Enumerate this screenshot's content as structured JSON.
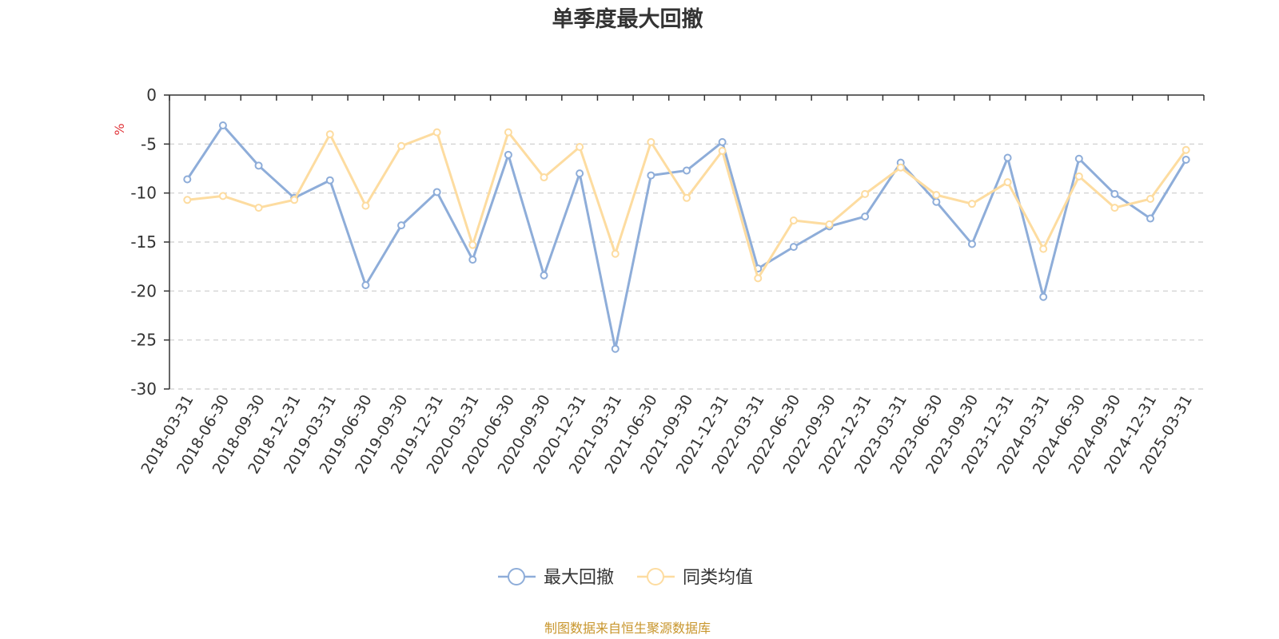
{
  "chart_data": {
    "type": "line",
    "title": "单季度最大回撤",
    "ylabel": "%",
    "xlabel": "",
    "ylim": [
      -30,
      0
    ],
    "yticks": [
      0,
      -5,
      -10,
      -15,
      -20,
      -25,
      -30
    ],
    "grid": true,
    "legend_position": "bottom",
    "categories": [
      "2018-03-31",
      "2018-06-30",
      "2018-09-30",
      "2018-12-31",
      "2019-03-31",
      "2019-06-30",
      "2019-09-30",
      "2019-12-31",
      "2020-03-31",
      "2020-06-30",
      "2020-09-30",
      "2020-12-31",
      "2021-03-31",
      "2021-06-30",
      "2021-09-30",
      "2021-12-31",
      "2022-03-31",
      "2022-06-30",
      "2022-09-30",
      "2022-12-31",
      "2023-03-31",
      "2023-06-30",
      "2023-09-30",
      "2023-12-31",
      "2024-03-31",
      "2024-06-30",
      "2024-09-30",
      "2024-12-31",
      "2025-03-31"
    ],
    "series": [
      {
        "name": "最大回撤",
        "color": "#8eadd9",
        "values": [
          -8.6,
          -3.1,
          -7.2,
          -10.5,
          -8.7,
          -19.4,
          -13.3,
          -9.9,
          -16.8,
          -6.1,
          -18.4,
          -8.0,
          -25.9,
          -8.2,
          -7.7,
          -4.8,
          -17.7,
          -15.5,
          -13.4,
          -12.4,
          -6.9,
          -10.9,
          -15.2,
          -6.4,
          -20.6,
          -6.5,
          -10.1,
          -12.6,
          -6.6
        ]
      },
      {
        "name": "同类均值",
        "color": "#fddca0",
        "values": [
          -10.7,
          -10.3,
          -11.5,
          -10.7,
          -4.0,
          -11.3,
          -5.2,
          -3.8,
          -15.3,
          -3.8,
          -8.4,
          -5.3,
          -16.2,
          -4.8,
          -10.5,
          -5.7,
          -18.7,
          -12.8,
          -13.2,
          -10.1,
          -7.4,
          -10.2,
          -11.1,
          -8.9,
          -15.7,
          -8.3,
          -11.5,
          -10.6,
          -5.6
        ]
      }
    ]
  },
  "source": "制图数据来自恒生聚源数据库"
}
